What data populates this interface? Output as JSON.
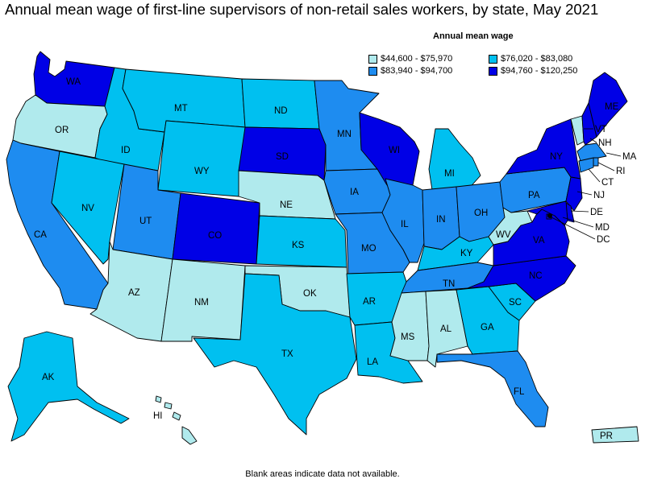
{
  "title": "Annual mean wage of first-line supervisors of non-retail sales workers, by state, May 2021",
  "legend": {
    "title": "Annual mean wage",
    "items": [
      {
        "range": "$44,600 - $75,970",
        "color": "#b0eaed"
      },
      {
        "range": "$76,020 - $83,080",
        "color": "#00c0f0"
      },
      {
        "range": "$83,940 - $94,700",
        "color": "#1e8cf0"
      },
      {
        "range": "$94,760 - $120,250",
        "color": "#0000e6"
      }
    ]
  },
  "footnote": "Blank areas indicate data not available.",
  "states": {
    "WA": {
      "label": "WA",
      "class": 3
    },
    "OR": {
      "label": "OR",
      "class": 0
    },
    "CA": {
      "label": "CA",
      "class": 2
    },
    "ID": {
      "label": "ID",
      "class": 1
    },
    "NV": {
      "label": "NV",
      "class": 1
    },
    "MT": {
      "label": "MT",
      "class": 1
    },
    "WY": {
      "label": "WY",
      "class": 1
    },
    "UT": {
      "label": "UT",
      "class": 2
    },
    "AZ": {
      "label": "AZ",
      "class": 0
    },
    "CO": {
      "label": "CO",
      "class": 3
    },
    "NM": {
      "label": "NM",
      "class": 0
    },
    "ND": {
      "label": "ND",
      "class": 1
    },
    "SD": {
      "label": "SD",
      "class": 3
    },
    "NE": {
      "label": "NE",
      "class": 0
    },
    "KS": {
      "label": "KS",
      "class": 1
    },
    "OK": {
      "label": "OK",
      "class": 0
    },
    "TX": {
      "label": "TX",
      "class": 1
    },
    "MN": {
      "label": "MN",
      "class": 2
    },
    "IA": {
      "label": "IA",
      "class": 2
    },
    "MO": {
      "label": "MO",
      "class": 2
    },
    "AR": {
      "label": "AR",
      "class": 1
    },
    "LA": {
      "label": "LA",
      "class": 1
    },
    "WI": {
      "label": "WI",
      "class": 3
    },
    "IL": {
      "label": "IL",
      "class": 2
    },
    "MI": {
      "label": "MI",
      "class": 1
    },
    "IN": {
      "label": "IN",
      "class": 2
    },
    "OH": {
      "label": "OH",
      "class": 2
    },
    "KY": {
      "label": "KY",
      "class": 1
    },
    "TN": {
      "label": "TN",
      "class": 2
    },
    "MS": {
      "label": "MS",
      "class": 0
    },
    "AL": {
      "label": "AL",
      "class": 0
    },
    "GA": {
      "label": "GA",
      "class": 1
    },
    "FL": {
      "label": "FL",
      "class": 2
    },
    "SC": {
      "label": "SC",
      "class": 1
    },
    "NC": {
      "label": "NC",
      "class": 3
    },
    "VA": {
      "label": "VA",
      "class": 3
    },
    "WV": {
      "label": "WV",
      "class": 0
    },
    "PA": {
      "label": "PA",
      "class": 2
    },
    "NY": {
      "label": "NY",
      "class": 3
    },
    "VT": {
      "label": "VT",
      "class": 0
    },
    "NH": {
      "label": "NH",
      "class": 3
    },
    "ME": {
      "label": "ME",
      "class": 3
    },
    "MA": {
      "label": "MA",
      "class": 2
    },
    "RI": {
      "label": "RI",
      "class": 2
    },
    "CT": {
      "label": "CT",
      "class": 2
    },
    "NJ": {
      "label": "NJ",
      "class": 3
    },
    "DE": {
      "label": "DE",
      "class": 3
    },
    "MD": {
      "label": "MD",
      "class": 3
    },
    "DC": {
      "label": "DC",
      "class": 3
    },
    "AK": {
      "label": "AK",
      "class": 1
    },
    "HI": {
      "label": "HI",
      "class": 0
    },
    "PR": {
      "label": "PR",
      "class": 0
    }
  }
}
